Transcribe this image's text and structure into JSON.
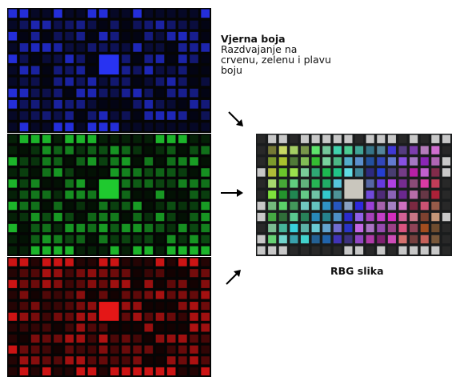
{
  "caption": {
    "title": "Vjerna boja",
    "lines": [
      "Razdvajanje na",
      "crvenu, zelenu i plavu",
      "boju"
    ]
  },
  "result_label": "RBG slika",
  "channels": [
    {
      "id": "blue",
      "color": "#2a36ff"
    },
    {
      "id": "green",
      "color": "#21d431"
    },
    {
      "id": "red",
      "color": "#f01818"
    }
  ],
  "composite_background": "#1a1c1d",
  "arrows": [
    "down-right-arrow",
    "right-arrow",
    "up-right-arrow"
  ]
}
